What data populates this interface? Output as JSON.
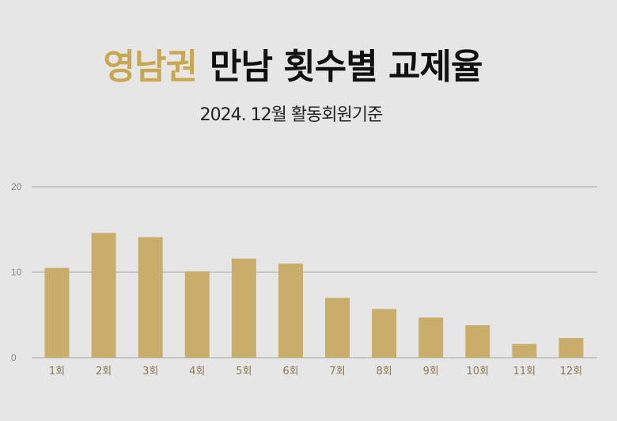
{
  "header": {
    "title_accent": "영남권",
    "title_rest": "만남 횟수별 교제율",
    "subtitle": "2024. 12월 활동회원기준"
  },
  "colors": {
    "accent": "#c9a84f",
    "bar": "#c9ae6b",
    "grid": "#a8a8a8",
    "background": "#e6e6e6"
  },
  "chart_data": {
    "type": "bar",
    "title": "영남권 만남 횟수별 교제율",
    "subtitle": "2024. 12월 활동회원기준",
    "categories": [
      "1회",
      "2회",
      "3회",
      "4회",
      "5회",
      "6회",
      "7회",
      "8회",
      "9회",
      "10회",
      "11회",
      "12회"
    ],
    "values": [
      10.5,
      14.6,
      14.1,
      10.1,
      11.6,
      11.0,
      7.0,
      5.7,
      4.7,
      3.8,
      1.6,
      2.3
    ],
    "yticks": [
      0,
      10,
      20
    ],
    "ylim": [
      0,
      20
    ],
    "grid": true,
    "xlabel": "",
    "ylabel": ""
  }
}
